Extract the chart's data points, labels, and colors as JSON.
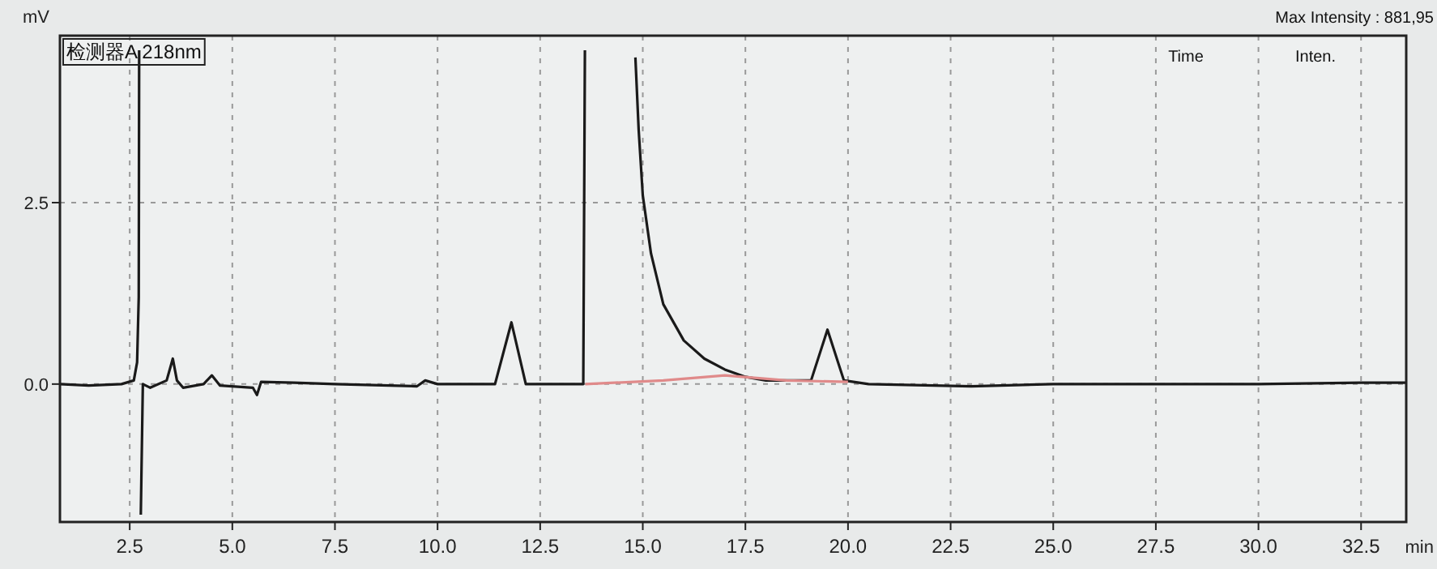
{
  "chart_data": {
    "type": "line",
    "xlabel": "min",
    "ylabel": "mV",
    "annotations": [
      "检测器A 218nm",
      "Max Intensity : 881,95",
      "Time",
      "Inten."
    ],
    "xlim": [
      0.8,
      33.6
    ],
    "ylim": [
      -1.9,
      4.8
    ],
    "xticks": [
      2.5,
      {
        "value": 5,
        "label": "5.0"
      },
      7.5,
      {
        "value": 10,
        "label": "10.0"
      },
      12.5,
      {
        "value": 15,
        "label": "15.0"
      },
      17.5,
      {
        "value": 20,
        "label": "20.0"
      },
      22.5,
      {
        "value": 25,
        "label": "25.0"
      },
      27.5,
      {
        "value": 30,
        "label": "30.0"
      },
      32.5
    ],
    "yticks": [
      {
        "value": 0,
        "label": "0.0"
      },
      2.5
    ],
    "grid": true,
    "marker": "none",
    "line_style": "solid",
    "series": [
      {
        "color": "#1a1a1a",
        "x": [
          0.8,
          1.5,
          2.3,
          2.6,
          2.68,
          2.72,
          2.73,
          2.75,
          2.77,
          2.82,
          3.0,
          3.4,
          3.55,
          3.65,
          3.8,
          4.3,
          4.5,
          4.7,
          5.5,
          5.6,
          5.7,
          6.5,
          7.5,
          9.5,
          9.7,
          10.0,
          11.4,
          11.8,
          12.15,
          13.55,
          13.59,
          14.2,
          14.82,
          14.9,
          15.0,
          15.2,
          15.5,
          16.0,
          16.5,
          17.0,
          17.5,
          18.0,
          19.1,
          19.5,
          19.9,
          20.5,
          23.0,
          25.0,
          27.0,
          30.0,
          32.5,
          33.6
        ],
        "values": [
          0,
          -0.02,
          0,
          0.05,
          0.3,
          1.2,
          4.6,
          null,
          -1.8,
          0,
          -0.05,
          0.05,
          0.35,
          0.05,
          -0.05,
          0,
          0.12,
          -0.02,
          -0.05,
          -0.15,
          0.03,
          0.02,
          0,
          -0.03,
          0.05,
          0,
          0,
          0.85,
          0,
          0,
          4.6,
          null,
          4.5,
          3.5,
          2.6,
          1.8,
          1.1,
          0.6,
          0.35,
          0.2,
          0.1,
          0.05,
          0.05,
          0.75,
          0.05,
          0,
          -0.03,
          0,
          0,
          0,
          0.02,
          0.02
        ]
      },
      {
        "color": "#e08a8a",
        "x": [
          13.6,
          15.5,
          17.0,
          18.5,
          20.0
        ],
        "values": [
          0,
          0.05,
          0.12,
          0.05,
          0.03
        ]
      }
    ]
  }
}
